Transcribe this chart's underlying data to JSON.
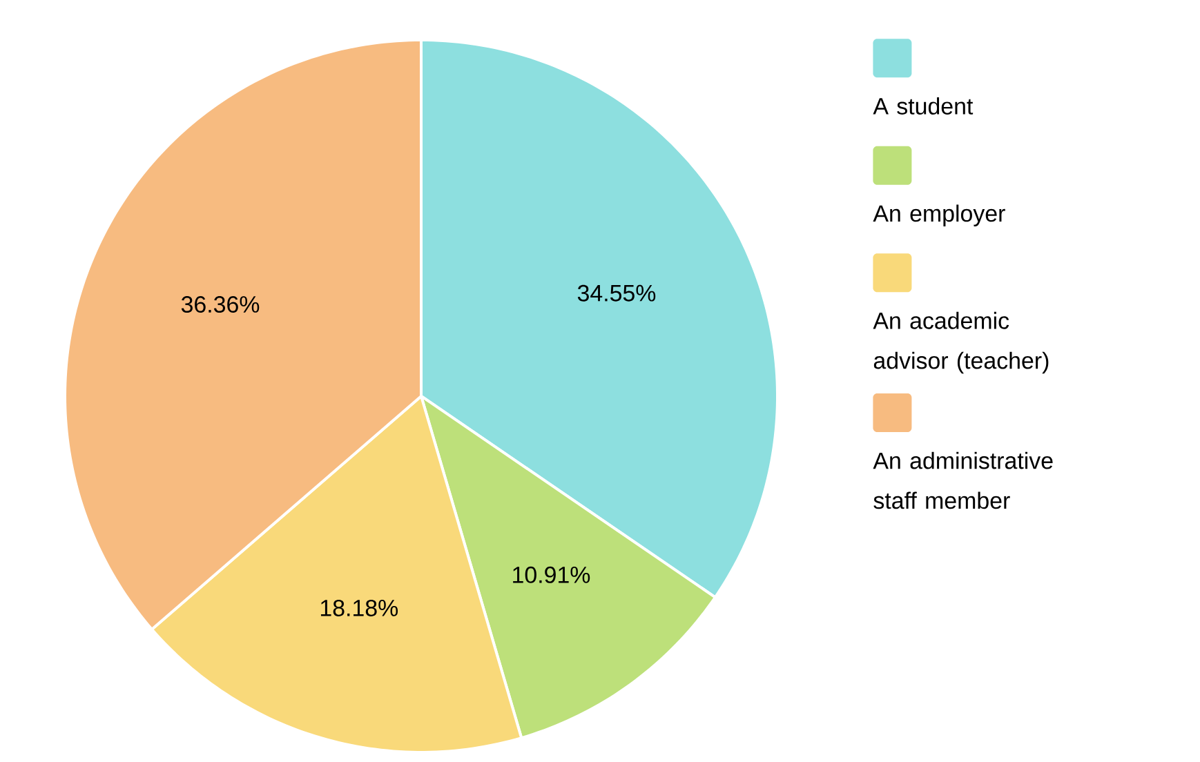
{
  "chart_data": {
    "type": "pie",
    "categories": [
      "A student",
      "An employer",
      "An academic advisor (teacher)",
      "An administrative staff  member"
    ],
    "values": [
      34.55,
      10.91,
      18.18,
      36.36
    ],
    "value_labels": [
      "34.55%",
      "10.91%",
      "18.18%",
      "36.36%"
    ],
    "colors": [
      "#8ddfdf",
      "#bde07a",
      "#f9d97a",
      "#f7bb80"
    ],
    "legend": "right"
  }
}
